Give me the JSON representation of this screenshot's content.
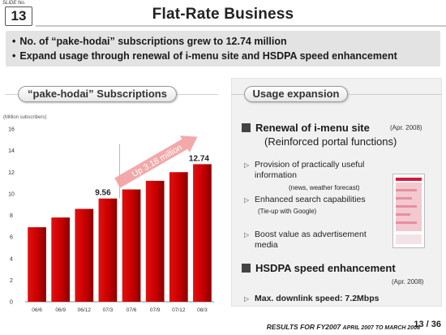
{
  "header": {
    "slide_label": "SLIDE No.",
    "slide_number": "13",
    "title": "Flat-Rate Business"
  },
  "highlights": [
    "No. of “pake-hodai” subscriptions grew to 12.74 million",
    "Expand usage through renewal of i-menu site and HSDPA speed enhancement"
  ],
  "left_section": {
    "title": "“pake-hodai” Subscriptions"
  },
  "chart_data": {
    "type": "bar",
    "unit_label": "(Million subscribers)",
    "categories": [
      "06/6",
      "06/9",
      "06/12",
      "07/3",
      "07/6",
      "07/9",
      "07/12",
      "08/3"
    ],
    "values": [
      6.9,
      7.8,
      8.6,
      9.56,
      10.4,
      11.2,
      12.0,
      12.74
    ],
    "ylim": [
      0,
      16
    ],
    "yticks": [
      0,
      2,
      4,
      6,
      8,
      10,
      12,
      14,
      16
    ],
    "data_labels": [
      {
        "index": 3,
        "text": "9.56"
      },
      {
        "index": 7,
        "text": "12.74"
      }
    ],
    "annotation": "Up 3.18 million",
    "bar_color": "#cc0000"
  },
  "right_section": {
    "title": "Usage expansion",
    "renewal": {
      "title": "Renewal of i-menu site",
      "date": "(Apr. 2008)",
      "subtitle": "(Reinforced portal functions)",
      "item1_line1": "Provision of practically useful",
      "item1_line2": "information",
      "item1_note": "(news, weather forecast)",
      "item2": "Enhanced search capabilities",
      "item2_note": "(Tie-up with Google)",
      "item3_line1": "Boost value as advertisement",
      "item3_line2": "media"
    },
    "hsdpa": {
      "title": "HSDPA speed enhancement",
      "date": "(Apr. 2008)",
      "item": "Max. downlink speed: 7.2Mbps"
    }
  },
  "footer": {
    "main": "RESULTS FOR FY2007",
    "period": "APRIL 2007 TO MARCH 2008",
    "page": "13 / 36"
  }
}
